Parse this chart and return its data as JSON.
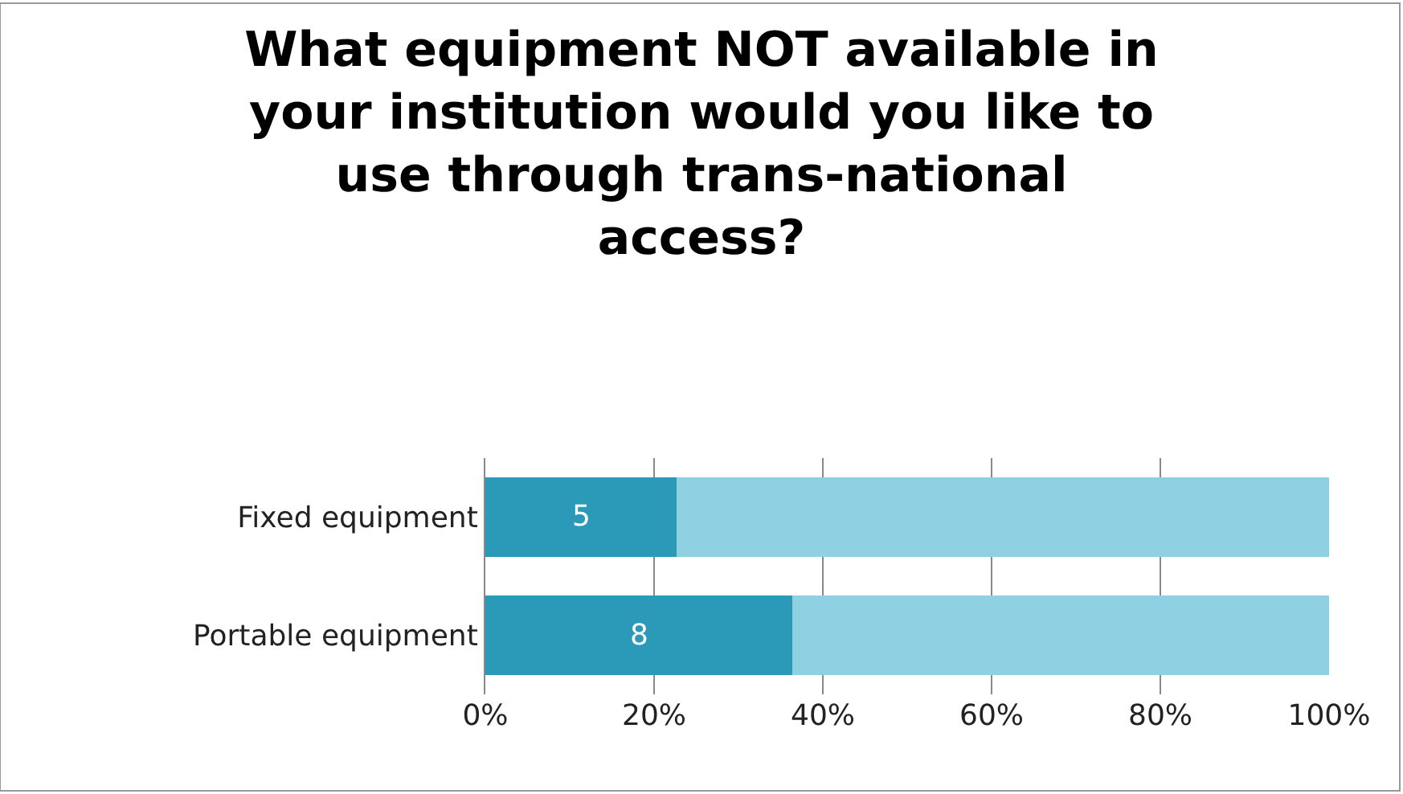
{
  "chart_data": {
    "type": "bar",
    "orientation": "horizontal",
    "stacked": true,
    "title": "What equipment NOT available in\nyour institution would you like to\nuse through trans-national\naccess?",
    "categories": [
      "Fixed equipment",
      "Portable equipment"
    ],
    "series": [
      {
        "color": "#2b9ab8",
        "values": [
          22.7,
          36.4
        ]
      },
      {
        "color": "#8fd0e2",
        "values": [
          77.3,
          63.6
        ]
      }
    ],
    "annotations": [
      "5",
      "8"
    ],
    "xlim": [
      0,
      100
    ],
    "xticks": [
      {
        "value": 0,
        "label": "0%"
      },
      {
        "value": 20,
        "label": "20%"
      },
      {
        "value": 40,
        "label": "40%"
      },
      {
        "value": 60,
        "label": "60%"
      },
      {
        "value": 80,
        "label": "80%"
      },
      {
        "value": 100,
        "label": "100%"
      }
    ],
    "grid": "x"
  }
}
